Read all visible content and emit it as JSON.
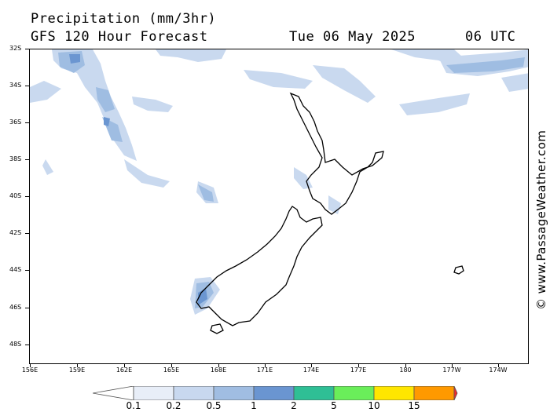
{
  "header": {
    "title": "Precipitation (mm/3hr)",
    "model": "GFS 120 Hour Forecast",
    "date": "Tue 06 May 2025",
    "time": "06 UTC"
  },
  "map": {
    "lat_labels": [
      "32S",
      "34S",
      "36S",
      "38S",
      "40S",
      "42S",
      "44S",
      "46S",
      "48S"
    ],
    "lon_labels": [
      "156E",
      "159E",
      "162E",
      "165E",
      "168E",
      "171E",
      "174E",
      "177E",
      "180",
      "177W",
      "174W"
    ],
    "colors": {
      "coastline": "#000000",
      "precip_light": "#c9d9ef",
      "precip_medium": "#9fbde2",
      "precip_heavy": "#6b96d1"
    }
  },
  "legend": {
    "labels": [
      "0.1",
      "0.2",
      "0.5",
      "1",
      "2",
      "5",
      "10",
      "15"
    ],
    "colors": [
      "#ffffff",
      "#e8eef8",
      "#c8d8ef",
      "#a0bde2",
      "#6a95d1",
      "#2fbf95",
      "#6aee5a",
      "#ffe600",
      "#ff9900",
      "#ee2a2a"
    ]
  },
  "copyright": "© www.PassageWeather.com"
}
